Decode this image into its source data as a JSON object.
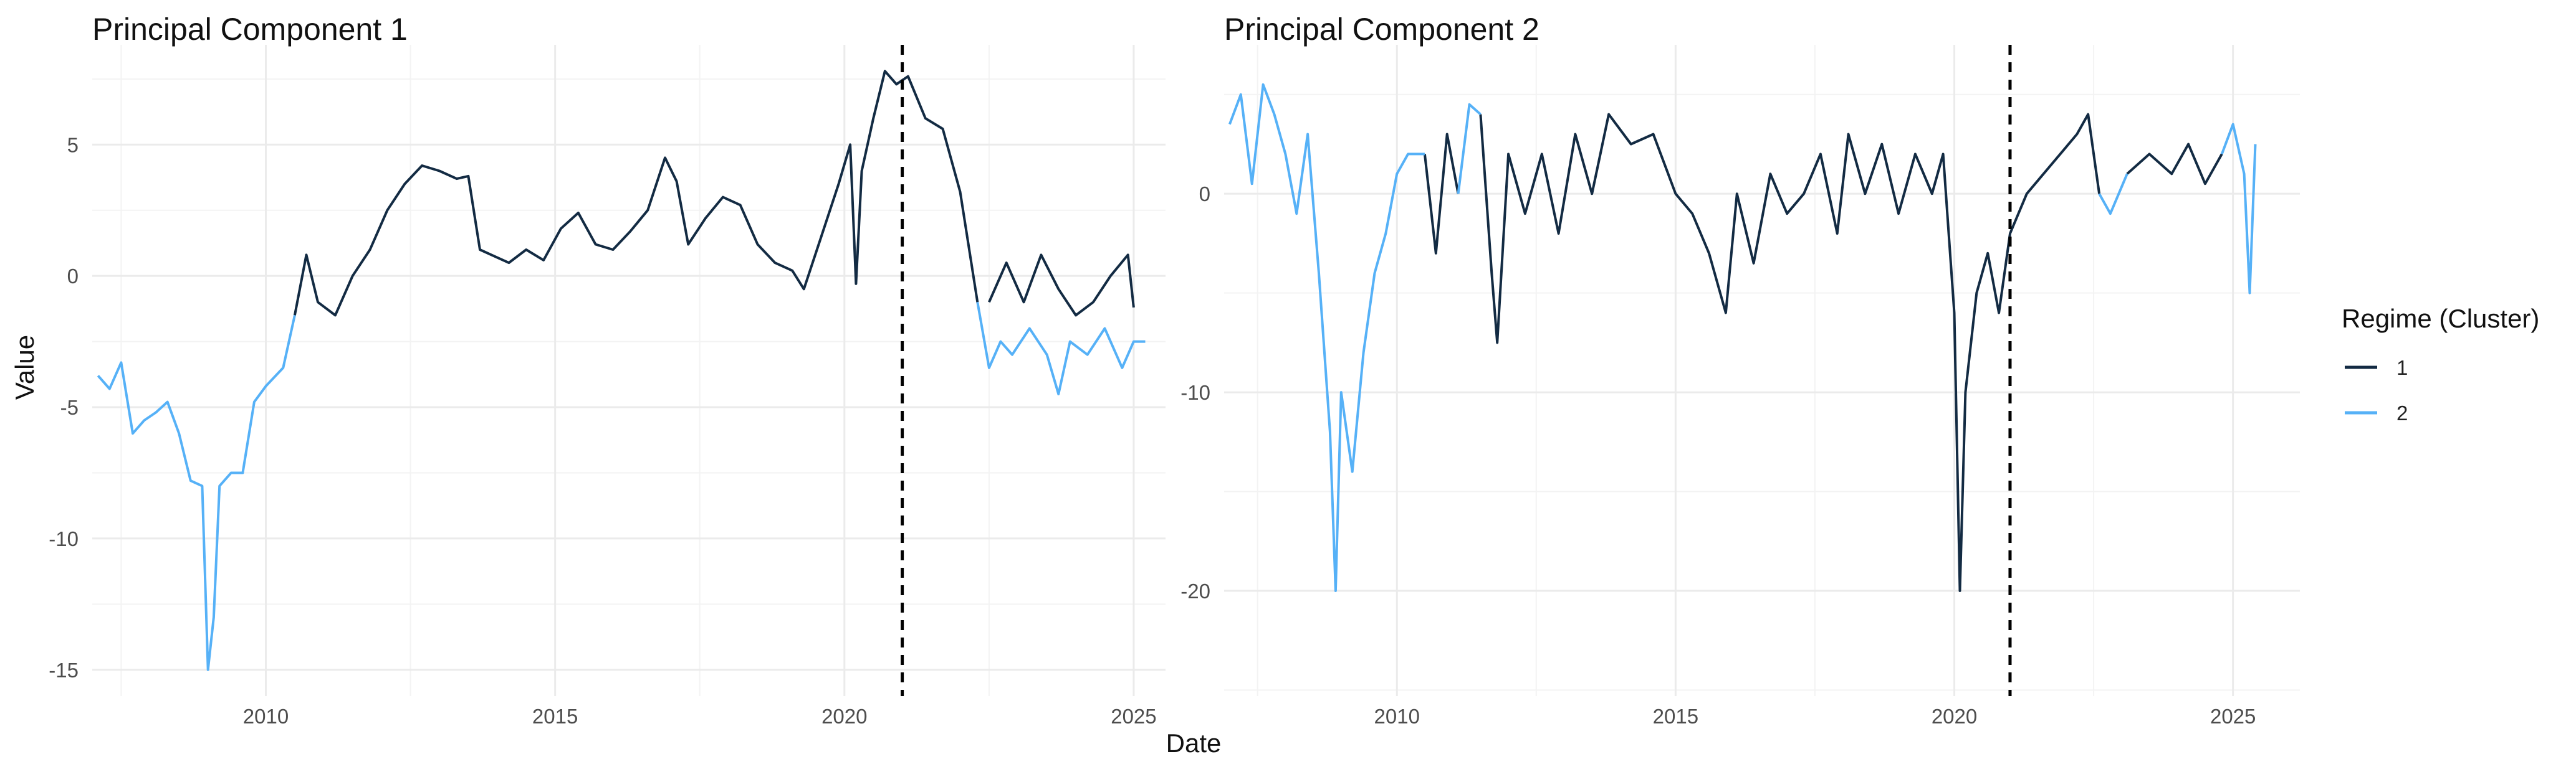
{
  "x_axis_title": "Date",
  "y_axis_title": "Value",
  "legend": {
    "title": "Regime (Cluster)",
    "entries": [
      {
        "label": "1",
        "color": "#132b43"
      },
      {
        "label": "2",
        "color": "#56b1f7"
      }
    ]
  },
  "chart_data": [
    {
      "type": "line",
      "title": "Principal Component 1",
      "xlabel": "Date",
      "ylabel": "Value",
      "xlim": [
        2007.0,
        2025.55
      ],
      "ylim": [
        -16.0,
        8.8
      ],
      "x_ticks": [
        2010,
        2015,
        2020,
        2025
      ],
      "x_tick_labels": [
        "2010",
        "2015",
        "2020",
        "2025"
      ],
      "y_ticks": [
        -15,
        -10,
        -5,
        0,
        5
      ],
      "y_tick_labels": [
        "-15",
        "-10",
        "-5",
        "0",
        "5"
      ],
      "grid": true,
      "vline": {
        "x": 2021.0,
        "style": "dashed",
        "color": "#000000"
      },
      "series": [
        {
          "name": "1",
          "color": "#132b43",
          "segments": [
            [
              [
                2010.5,
                -1.5
              ],
              [
                2010.7,
                0.8
              ],
              [
                2010.9,
                -1.0
              ],
              [
                2011.2,
                -1.5
              ],
              [
                2011.5,
                0.0
              ],
              [
                2011.8,
                1.0
              ],
              [
                2012.1,
                2.5
              ],
              [
                2012.4,
                3.5
              ],
              [
                2012.7,
                4.2
              ],
              [
                2013.0,
                4.0
              ],
              [
                2013.3,
                3.7
              ],
              [
                2013.5,
                3.8
              ],
              [
                2013.7,
                1.0
              ],
              [
                2013.9,
                0.8
              ],
              [
                2014.2,
                0.5
              ],
              [
                2014.5,
                1.0
              ],
              [
                2014.8,
                0.6
              ],
              [
                2015.1,
                1.8
              ],
              [
                2015.4,
                2.4
              ],
              [
                2015.7,
                1.2
              ],
              [
                2016.0,
                1.0
              ],
              [
                2016.3,
                1.7
              ],
              [
                2016.6,
                2.5
              ],
              [
                2016.9,
                4.5
              ],
              [
                2017.1,
                3.6
              ],
              [
                2017.3,
                1.2
              ],
              [
                2017.6,
                2.2
              ],
              [
                2017.9,
                3.0
              ],
              [
                2018.2,
                2.7
              ],
              [
                2018.5,
                1.2
              ],
              [
                2018.8,
                0.5
              ],
              [
                2019.1,
                0.2
              ],
              [
                2019.3,
                -0.5
              ],
              [
                2019.6,
                1.5
              ],
              [
                2019.9,
                3.5
              ],
              [
                2020.1,
                5.0
              ],
              [
                2020.2,
                -0.3
              ],
              [
                2020.3,
                4.0
              ],
              [
                2020.5,
                6.0
              ],
              [
                2020.7,
                7.8
              ],
              [
                2020.9,
                7.3
              ],
              [
                2021.1,
                7.6
              ],
              [
                2021.4,
                6.0
              ],
              [
                2021.7,
                5.6
              ],
              [
                2022.0,
                3.2
              ],
              [
                2022.3,
                -1.0
              ]
            ],
            [
              [
                2022.5,
                -1.0
              ],
              [
                2022.8,
                0.5
              ],
              [
                2023.1,
                -1.0
              ],
              [
                2023.4,
                0.8
              ],
              [
                2023.7,
                -0.5
              ],
              [
                2024.0,
                -1.5
              ],
              [
                2024.3,
                -1.0
              ],
              [
                2024.6,
                0.0
              ],
              [
                2024.9,
                0.8
              ],
              [
                2025.0,
                -1.2
              ]
            ]
          ]
        },
        {
          "name": "2",
          "color": "#56b1f7",
          "segments": [
            [
              [
                2007.1,
                -3.8
              ],
              [
                2007.3,
                -4.3
              ],
              [
                2007.5,
                -3.3
              ],
              [
                2007.7,
                -6.0
              ],
              [
                2007.9,
                -5.5
              ],
              [
                2008.1,
                -5.2
              ],
              [
                2008.3,
                -4.8
              ],
              [
                2008.5,
                -6.0
              ],
              [
                2008.7,
                -7.8
              ],
              [
                2008.9,
                -8.0
              ],
              [
                2009.0,
                -15.0
              ],
              [
                2009.1,
                -13.0
              ],
              [
                2009.2,
                -8.0
              ],
              [
                2009.4,
                -7.5
              ],
              [
                2009.6,
                -7.5
              ],
              [
                2009.8,
                -4.8
              ],
              [
                2010.0,
                -4.2
              ],
              [
                2010.3,
                -3.5
              ],
              [
                2010.5,
                -1.5
              ]
            ],
            [
              [
                2022.3,
                -1.0
              ],
              [
                2022.5,
                -3.5
              ],
              [
                2022.7,
                -2.5
              ],
              [
                2022.9,
                -3.0
              ],
              [
                2023.2,
                -2.0
              ],
              [
                2023.5,
                -3.0
              ],
              [
                2023.7,
                -4.5
              ],
              [
                2023.9,
                -2.5
              ],
              [
                2024.2,
                -3.0
              ],
              [
                2024.5,
                -2.0
              ],
              [
                2024.8,
                -3.5
              ],
              [
                2025.0,
                -2.5
              ],
              [
                2025.2,
                -2.5
              ]
            ]
          ]
        }
      ]
    },
    {
      "type": "line",
      "title": "Principal Component 2",
      "xlabel": "Date",
      "ylabel": "",
      "xlim": [
        2006.9,
        2026.2
      ],
      "ylim": [
        -25.3,
        7.5
      ],
      "x_ticks": [
        2010,
        2015,
        2020,
        2025
      ],
      "x_tick_labels": [
        "2010",
        "2015",
        "2020",
        "2025"
      ],
      "y_ticks": [
        -20,
        -10,
        0
      ],
      "y_tick_labels": [
        "-20",
        "-10",
        "0"
      ],
      "grid": true,
      "vline": {
        "x": 2021.0,
        "style": "dashed",
        "color": "#000000"
      },
      "series": [
        {
          "name": "1",
          "color": "#132b43",
          "segments": [
            [
              [
                2010.5,
                2.0
              ],
              [
                2010.7,
                -3.0
              ],
              [
                2010.9,
                3.0
              ],
              [
                2011.1,
                0.0
              ]
            ],
            [
              [
                2011.5,
                4.0
              ],
              [
                2011.7,
                -4.0
              ],
              [
                2011.8,
                -7.5
              ],
              [
                2012.0,
                2.0
              ],
              [
                2012.3,
                -1.0
              ],
              [
                2012.6,
                2.0
              ],
              [
                2012.9,
                -2.0
              ],
              [
                2013.2,
                3.0
              ],
              [
                2013.5,
                0.0
              ],
              [
                2013.8,
                4.0
              ],
              [
                2014.2,
                2.5
              ],
              [
                2014.6,
                3.0
              ],
              [
                2015.0,
                0.0
              ],
              [
                2015.3,
                -1.0
              ],
              [
                2015.6,
                -3.0
              ],
              [
                2015.9,
                -6.0
              ],
              [
                2016.1,
                0.0
              ],
              [
                2016.4,
                -3.5
              ],
              [
                2016.7,
                1.0
              ],
              [
                2017.0,
                -1.0
              ],
              [
                2017.3,
                0.0
              ],
              [
                2017.6,
                2.0
              ],
              [
                2017.9,
                -2.0
              ],
              [
                2018.1,
                3.0
              ],
              [
                2018.4,
                0.0
              ],
              [
                2018.7,
                2.5
              ],
              [
                2019.0,
                -1.0
              ],
              [
                2019.3,
                2.0
              ],
              [
                2019.6,
                0.0
              ],
              [
                2019.8,
                2.0
              ],
              [
                2020.0,
                -6.0
              ],
              [
                2020.1,
                -20.0
              ],
              [
                2020.2,
                -10.0
              ],
              [
                2020.4,
                -5.0
              ],
              [
                2020.6,
                -3.0
              ],
              [
                2020.8,
                -6.0
              ],
              [
                2021.0,
                -2.0
              ],
              [
                2021.3,
                0.0
              ],
              [
                2021.6,
                1.0
              ],
              [
                2021.9,
                2.0
              ],
              [
                2022.2,
                3.0
              ],
              [
                2022.4,
                4.0
              ],
              [
                2022.6,
                0.0
              ]
            ],
            [
              [
                2023.1,
                1.0
              ],
              [
                2023.5,
                2.0
              ],
              [
                2023.9,
                1.0
              ],
              [
                2024.2,
                2.5
              ],
              [
                2024.5,
                0.5
              ],
              [
                2024.8,
                2.0
              ]
            ]
          ]
        },
        {
          "name": "2",
          "color": "#56b1f7",
          "segments": [
            [
              [
                2007.0,
                3.5
              ],
              [
                2007.2,
                5.0
              ],
              [
                2007.4,
                0.5
              ],
              [
                2007.6,
                5.5
              ],
              [
                2007.8,
                4.0
              ],
              [
                2008.0,
                2.0
              ],
              [
                2008.2,
                -1.0
              ],
              [
                2008.4,
                3.0
              ],
              [
                2008.6,
                -4.0
              ],
              [
                2008.8,
                -12.0
              ],
              [
                2008.9,
                -20.0
              ],
              [
                2009.0,
                -10.0
              ],
              [
                2009.2,
                -14.0
              ],
              [
                2009.4,
                -8.0
              ],
              [
                2009.6,
                -4.0
              ],
              [
                2009.8,
                -2.0
              ],
              [
                2010.0,
                1.0
              ],
              [
                2010.2,
                2.0
              ],
              [
                2010.5,
                2.0
              ]
            ],
            [
              [
                2011.1,
                0.0
              ],
              [
                2011.3,
                4.5
              ],
              [
                2011.5,
                4.0
              ]
            ],
            [
              [
                2022.6,
                0.0
              ],
              [
                2022.8,
                -1.0
              ],
              [
                2023.1,
                1.0
              ]
            ],
            [
              [
                2024.8,
                2.0
              ],
              [
                2025.0,
                3.5
              ],
              [
                2025.2,
                1.0
              ],
              [
                2025.3,
                -5.0
              ],
              [
                2025.4,
                2.5
              ]
            ]
          ]
        }
      ]
    }
  ]
}
